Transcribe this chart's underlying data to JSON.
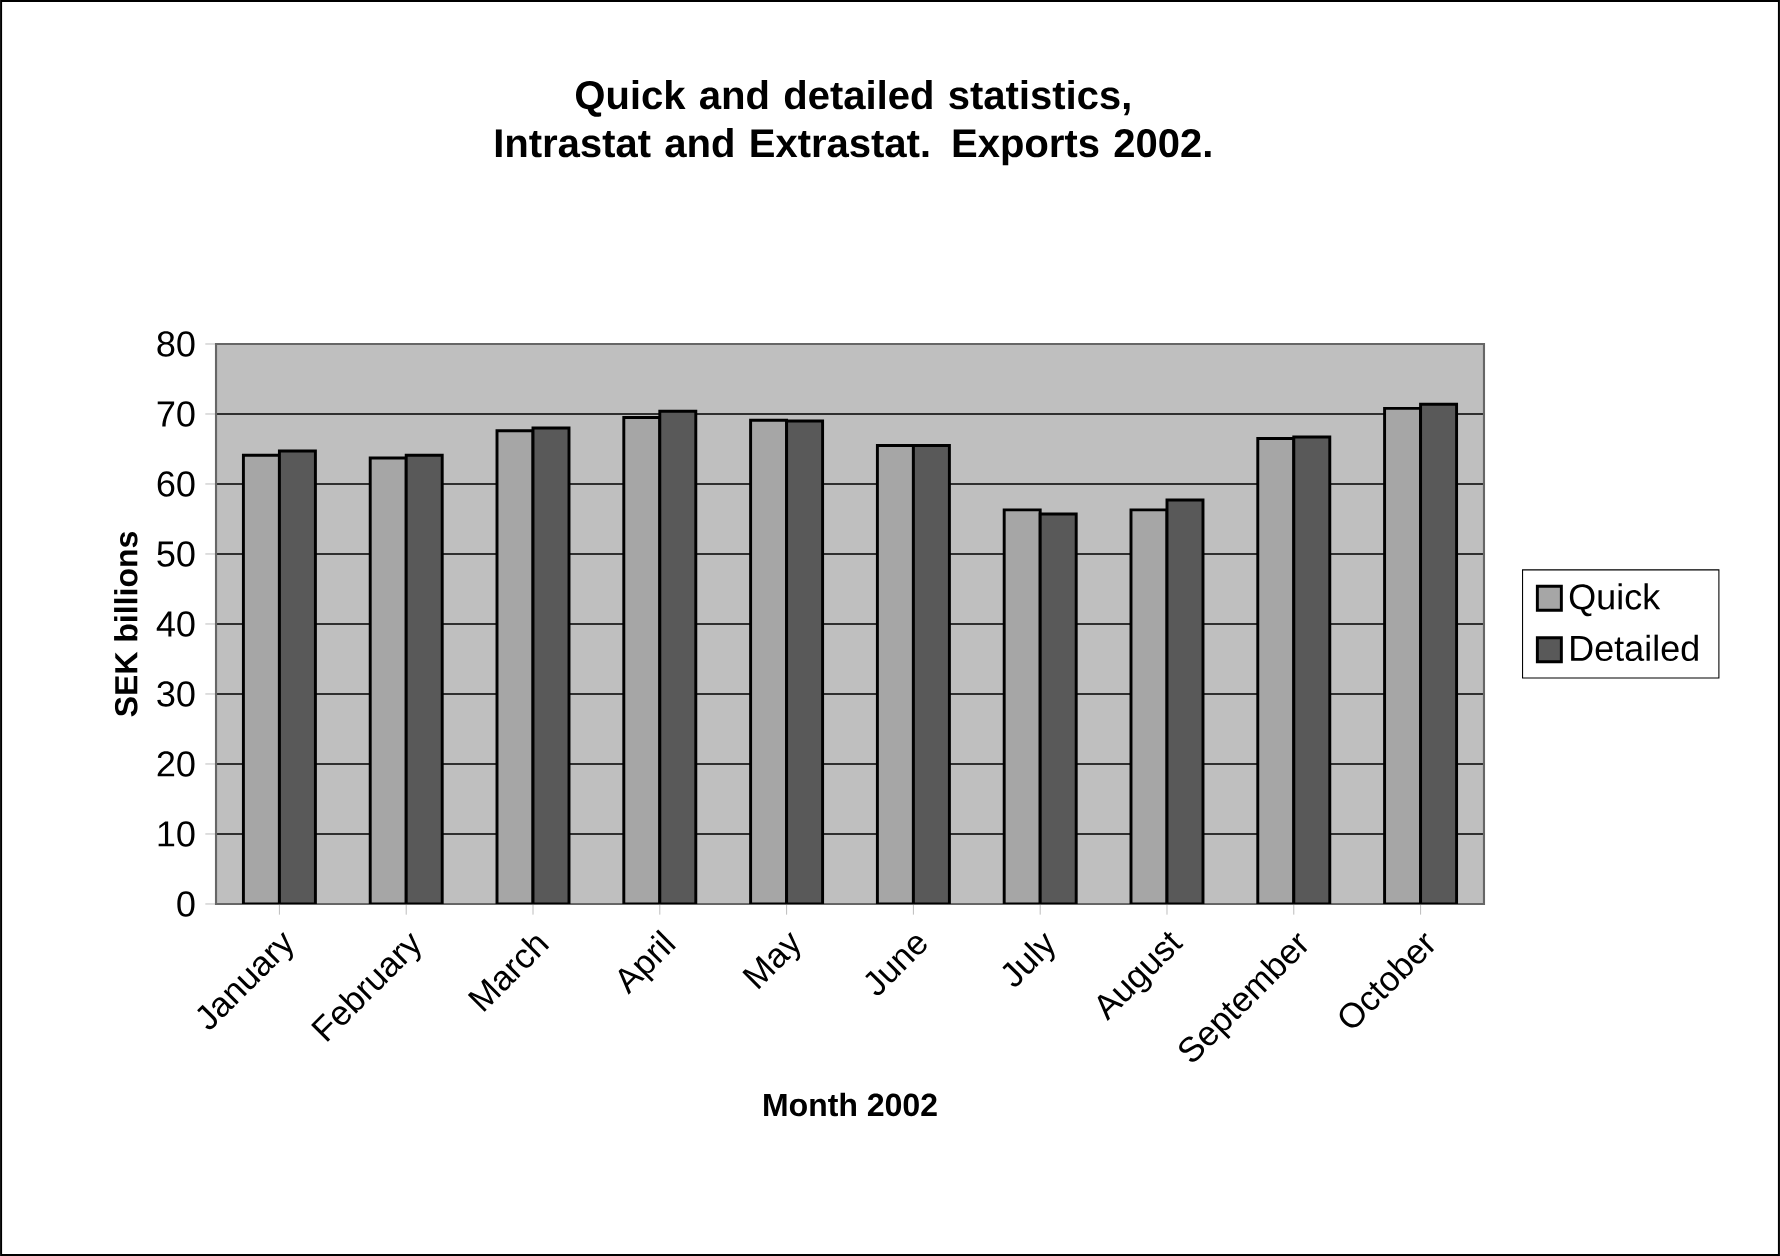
{
  "chart_data": {
    "type": "bar",
    "title": "Quick and detailed statistics, Intrastat and Extrastat. Exports 2002.",
    "xlabel": "Month 2002",
    "ylabel": "SEK billions",
    "categories": [
      "January",
      "February",
      "March",
      "April",
      "May",
      "June",
      "July",
      "August",
      "September",
      "October"
    ],
    "series": [
      {
        "name": "Quick",
        "color": "#a6a6a6",
        "values": [
          64.1,
          63.7,
          67.6,
          69.5,
          69.1,
          65.5,
          56.3,
          56.3,
          66.5,
          70.8
        ]
      },
      {
        "name": "Detailed",
        "color": "#595959",
        "values": [
          64.7,
          64.1,
          68.0,
          70.4,
          69.0,
          65.5,
          55.7,
          57.7,
          66.7,
          71.4
        ]
      }
    ],
    "ylim": [
      0,
      80
    ],
    "yticks": [
      0,
      10,
      20,
      30,
      40,
      50,
      60,
      70,
      80
    ],
    "grid": "y",
    "legend": "right"
  }
}
